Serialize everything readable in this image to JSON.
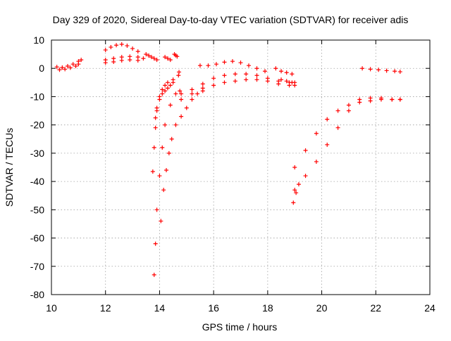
{
  "chart_data": {
    "type": "scatter",
    "title": "Day 329 of 2020, Sidereal Day-to-day VTEC variation (SDTVAR) for receiver adis",
    "xlabel": "GPS time / hours",
    "ylabel": "SDTVAR / TECUs",
    "xlim": [
      10,
      24
    ],
    "ylim": [
      -80,
      10
    ],
    "xticks": [
      10,
      12,
      14,
      16,
      18,
      20,
      22,
      24
    ],
    "yticks": [
      -80,
      -70,
      -60,
      -50,
      -40,
      -30,
      -20,
      -10,
      0,
      10
    ],
    "grid": true,
    "marker": "+",
    "color": "#ff0000",
    "series": [
      {
        "name": "seg-a",
        "x": [
          10.2,
          10.4,
          10.6,
          10.8,
          11.0,
          11.1
        ],
        "y": [
          0.5,
          0.3,
          0.8,
          1.5,
          2.5,
          3.0
        ]
      },
      {
        "name": "seg-b",
        "x": [
          10.3,
          10.5,
          10.7,
          10.9,
          11.0
        ],
        "y": [
          -0.5,
          -0.3,
          0.2,
          0.8,
          1.5
        ]
      },
      {
        "name": "seg-c",
        "x": [
          12.0,
          12.2,
          12.4,
          12.6,
          12.8,
          13.0,
          13.2
        ],
        "y": [
          6.5,
          7.5,
          8.2,
          8.5,
          8.0,
          7.0,
          6.0
        ]
      },
      {
        "name": "seg-d",
        "x": [
          12.0,
          12.3,
          12.6,
          12.9,
          13.2,
          13.4
        ],
        "y": [
          3.0,
          3.5,
          4.0,
          4.2,
          4.0,
          3.5
        ]
      },
      {
        "name": "seg-e",
        "x": [
          12.0,
          12.3,
          12.6,
          12.9,
          13.2
        ],
        "y": [
          2.0,
          2.3,
          2.8,
          3.0,
          2.8
        ]
      },
      {
        "name": "seg-f",
        "x": [
          13.5,
          13.6,
          13.7,
          13.8,
          13.9
        ],
        "y": [
          5.0,
          4.5,
          4.0,
          3.5,
          3.0
        ]
      },
      {
        "name": "seg-g",
        "x": [
          14.2,
          14.3,
          14.4
        ],
        "y": [
          4.0,
          3.5,
          3.0
        ]
      },
      {
        "name": "seg-h",
        "x": [
          14.55,
          14.6,
          14.65
        ],
        "y": [
          5.0,
          4.6,
          4.2
        ]
      },
      {
        "name": "seg-i",
        "x": [
          14.72
        ],
        "y": [
          -1.3
        ]
      },
      {
        "name": "seg-j",
        "x": [
          13.75,
          13.8,
          13.85,
          13.9,
          14.0,
          14.1,
          14.2,
          14.3,
          14.5,
          14.7
        ],
        "y": [
          -36.5,
          -28,
          -21,
          -15,
          -10,
          -7.5,
          -6,
          -5,
          -4,
          -2.5
        ]
      },
      {
        "name": "seg-k",
        "x": [
          13.8,
          13.85,
          13.9,
          14.0,
          14.1,
          14.2,
          14.4,
          14.6,
          14.75
        ],
        "y": [
          -73,
          -62,
          -50,
          -38,
          -28,
          -20,
          -13,
          -9,
          -8
        ]
      },
      {
        "name": "seg-l",
        "x": [
          13.85,
          13.9,
          14.0,
          14.1,
          14.2,
          14.3,
          14.4,
          14.5
        ],
        "y": [
          -17.5,
          -14,
          -11,
          -9,
          -8,
          -7,
          -6,
          -5
        ]
      },
      {
        "name": "seg-m",
        "x": [
          14.05,
          14.15,
          14.25,
          14.35,
          14.45
        ],
        "y": [
          -54,
          -43,
          -36,
          -30,
          -25
        ]
      },
      {
        "name": "seg-n",
        "x": [
          14.6,
          14.8,
          15.0,
          15.2,
          15.4,
          15.6
        ],
        "y": [
          -20,
          -17,
          -14,
          -11,
          -9,
          -8
        ]
      },
      {
        "name": "seg-o",
        "x": [
          14.8,
          15.2,
          15.6,
          16.0,
          16.4,
          16.8,
          17.2,
          17.6,
          18.0,
          18.4,
          18.8,
          19.0
        ],
        "y": [
          -9,
          -7.5,
          -5.5,
          -3.5,
          -2.5,
          -2,
          -2,
          -2.5,
          -3.5,
          -4.5,
          -5,
          -5
        ]
      },
      {
        "name": "seg-p",
        "x": [
          14.8,
          15.2,
          15.6,
          16.0,
          16.4,
          16.8,
          17.2,
          17.6,
          18.0,
          18.4,
          18.8,
          19.0
        ],
        "y": [
          -11,
          -9,
          -7,
          -6,
          -5,
          -4.5,
          -4,
          -4,
          -4.5,
          -5.5,
          -6,
          -6
        ]
      },
      {
        "name": "seg-q",
        "x": [
          15.5,
          15.8,
          16.1,
          16.4,
          16.7,
          17.0,
          17.3,
          17.6,
          17.9
        ],
        "y": [
          1,
          1,
          1.5,
          2.2,
          2.5,
          2,
          1,
          0,
          -1
        ]
      },
      {
        "name": "seg-r",
        "x": [
          18.3,
          18.5,
          18.7,
          18.9
        ],
        "y": [
          0,
          -1,
          -1.5,
          -2
        ]
      },
      {
        "name": "seg-s",
        "x": [
          19.0,
          19.4,
          19.8,
          20.2,
          20.6,
          21.0,
          21.4,
          21.8,
          22.2,
          22.6,
          22.9
        ],
        "y": [
          -35,
          -29,
          -23,
          -18,
          -15,
          -13,
          -12,
          -11.5,
          -11,
          -11,
          -11
        ]
      },
      {
        "name": "seg-t",
        "x": [
          19.0,
          19.4,
          19.8,
          20.2,
          20.6,
          21.0,
          21.4,
          21.8,
          22.2,
          22.6,
          22.9
        ],
        "y": [
          -43,
          -38,
          -33,
          -27,
          -21,
          -15,
          -11,
          -10.5,
          -10.5,
          -11,
          -11
        ]
      },
      {
        "name": "seg-u",
        "x": [
          18.95,
          19.05,
          19.15
        ],
        "y": [
          -47.5,
          -44,
          -41
        ]
      },
      {
        "name": "seg-v",
        "x": [
          21.5,
          21.8,
          22.1,
          22.4,
          22.7,
          22.9
        ],
        "y": [
          0,
          -0.3,
          -0.5,
          -0.8,
          -1,
          -1.2
        ]
      },
      {
        "name": "seg-w",
        "x": [
          18.5,
          18.7,
          18.9
        ],
        "y": [
          -4,
          -4.5,
          -5
        ]
      }
    ]
  }
}
